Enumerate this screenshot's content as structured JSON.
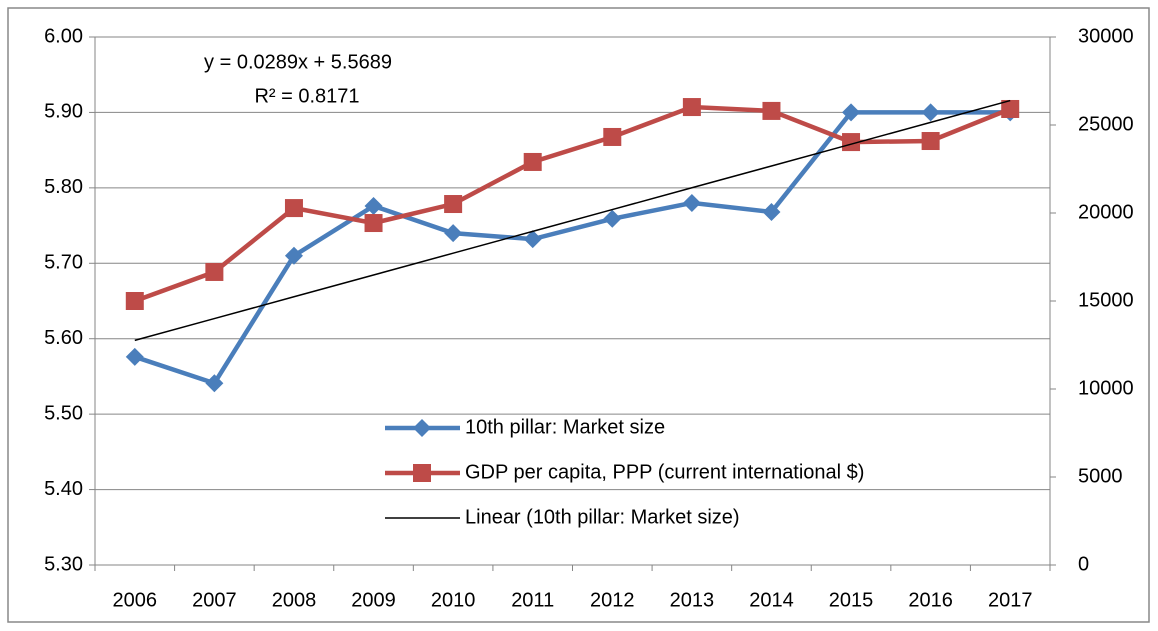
{
  "chart_data": {
    "type": "line",
    "categories": [
      "2006",
      "2007",
      "2008",
      "2009",
      "2010",
      "2011",
      "2012",
      "2013",
      "2014",
      "2015",
      "2016",
      "2017"
    ],
    "series": [
      {
        "name": "10th pillar: Market size",
        "color": "#4a7ebb",
        "marker": "diamond",
        "values": [
          5.576,
          5.541,
          5.71,
          5.776,
          5.74,
          5.732,
          5.759,
          5.78,
          5.768,
          5.9,
          5.9,
          5.9
        ]
      },
      {
        "name": "GDP per capita, PPP (current international $)",
        "color": "#be4b48",
        "marker": "square",
        "axis": "y2",
        "values": [
          15000,
          16650,
          20280,
          19430,
          20510,
          22900,
          24320,
          26020,
          25800,
          24030,
          24090,
          25910
        ]
      },
      {
        "name": "Linear (10th pillar: Market size)",
        "color": "#000000",
        "marker": "none",
        "values": [
          5.5978,
          5.6267,
          5.6556,
          5.6845,
          5.7134,
          5.7423,
          5.7712,
          5.8001,
          5.829,
          5.8579,
          5.8868,
          5.9157
        ]
      }
    ],
    "annotations": [
      "y = 0.0289x + 5.5689",
      "R² = 0.8171"
    ],
    "ylim": [
      5.3,
      6.0
    ],
    "yticks": [
      {
        "value": 5.3,
        "label": "5.30"
      },
      {
        "value": 5.4,
        "label": "5.40"
      },
      {
        "value": 5.5,
        "label": "5.50"
      },
      {
        "value": 5.6,
        "label": "5.60"
      },
      {
        "value": 5.7,
        "label": "5.70"
      },
      {
        "value": 5.8,
        "label": "5.80"
      },
      {
        "value": 5.9,
        "label": "5.90"
      },
      {
        "value": 6.0,
        "label": "6.00"
      }
    ],
    "y2lim": [
      0,
      30000
    ],
    "y2ticks": [
      0,
      5000,
      10000,
      15000,
      20000,
      25000,
      30000
    ],
    "grid": true,
    "legend": "center"
  }
}
